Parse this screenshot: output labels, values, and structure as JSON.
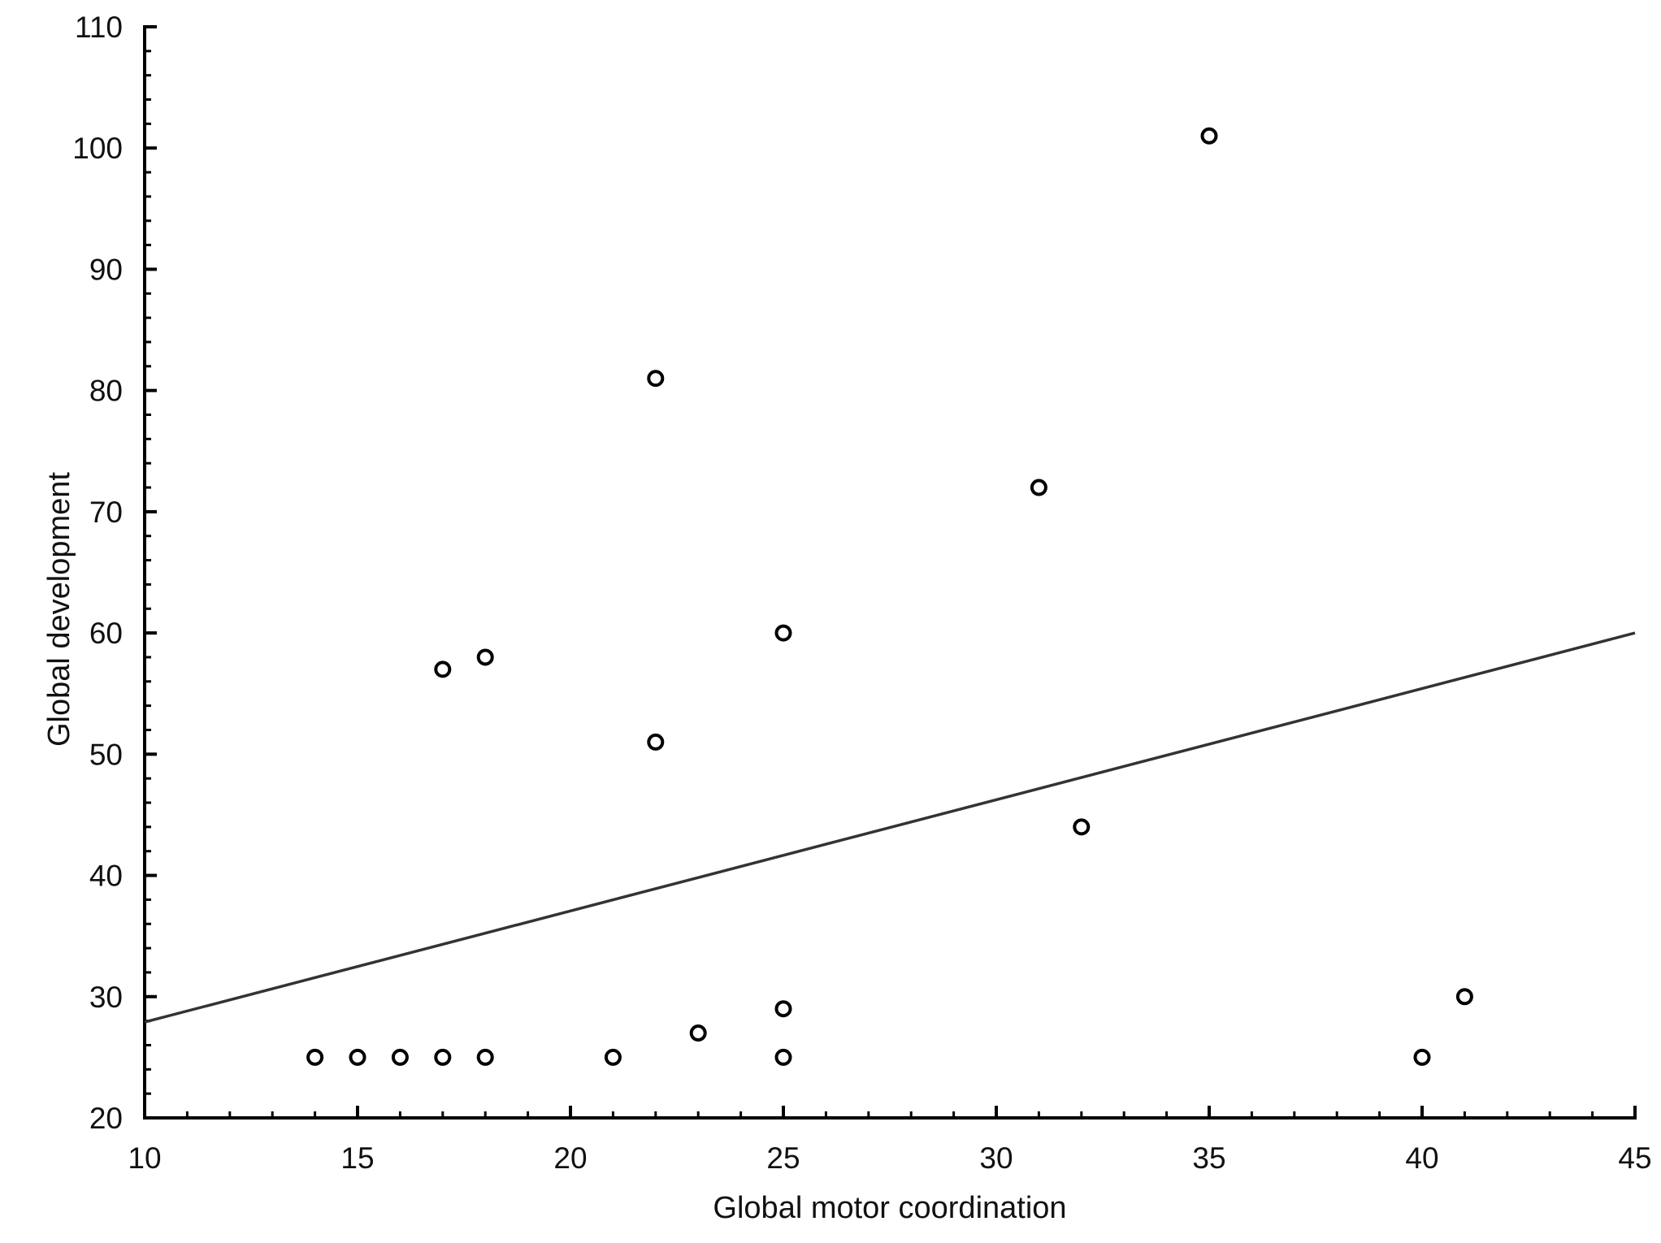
{
  "chart_data": {
    "type": "scatter",
    "title": "",
    "xlabel": "Global motor coordination",
    "ylabel": "Global development",
    "xlim": [
      10,
      45
    ],
    "ylim": [
      20,
      110
    ],
    "x_ticks": [
      10,
      15,
      20,
      25,
      30,
      35,
      40,
      45
    ],
    "y_ticks": [
      20,
      30,
      40,
      50,
      60,
      70,
      80,
      90,
      100,
      110
    ],
    "x_minor_step": 1,
    "y_minor_step": 2,
    "grid": false,
    "legend": "none",
    "points": [
      {
        "x": 14,
        "y": 25
      },
      {
        "x": 15,
        "y": 25
      },
      {
        "x": 16,
        "y": 25
      },
      {
        "x": 17,
        "y": 25
      },
      {
        "x": 18,
        "y": 25
      },
      {
        "x": 21,
        "y": 25
      },
      {
        "x": 25,
        "y": 25
      },
      {
        "x": 40,
        "y": 25
      },
      {
        "x": 23,
        "y": 27
      },
      {
        "x": 25,
        "y": 29
      },
      {
        "x": 41,
        "y": 30
      },
      {
        "x": 32,
        "y": 44
      },
      {
        "x": 22,
        "y": 51
      },
      {
        "x": 17,
        "y": 57
      },
      {
        "x": 18,
        "y": 58
      },
      {
        "x": 25,
        "y": 60
      },
      {
        "x": 31,
        "y": 72
      },
      {
        "x": 22,
        "y": 81
      },
      {
        "x": 35,
        "y": 101
      }
    ],
    "trendline": {
      "x1": 10,
      "y1": 27.9,
      "x2": 45,
      "y2": 60.0
    },
    "marker": {
      "shape": "open-circle",
      "radius": 8.5,
      "stroke_width": 4
    },
    "colors": {
      "background": "#ffffff",
      "axis": "#000000",
      "tick": "#000000",
      "text": "#111111",
      "trendline": "#333333",
      "marker_stroke": "#000000",
      "marker_fill": "#ffffff"
    }
  }
}
